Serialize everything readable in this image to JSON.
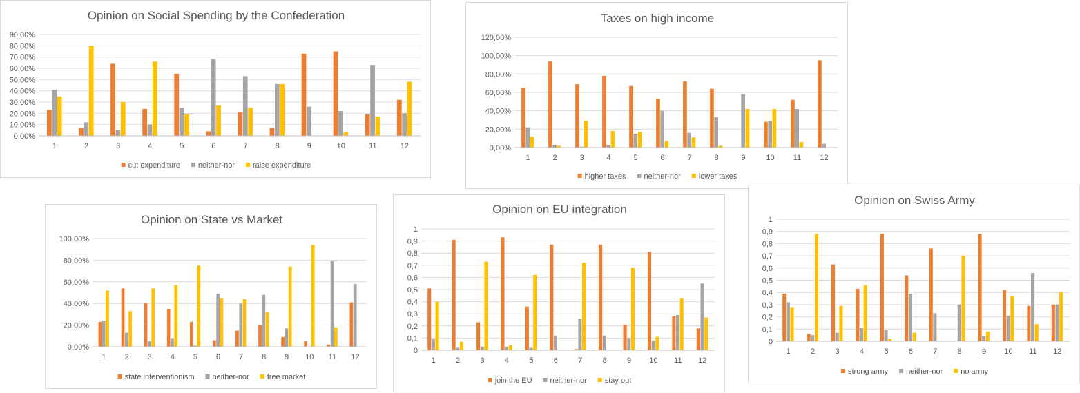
{
  "colors": {
    "series1": "#ED7D31",
    "series2": "#A5A5A5",
    "series3": "#FFC000",
    "grid": "#d9d9d9",
    "text": "#595959"
  },
  "chart_data": [
    {
      "type": "bar",
      "title": "Opinion on Social Spending by the Confederation",
      "categories": [
        "1",
        "2",
        "3",
        "4",
        "5",
        "6",
        "7",
        "8",
        "9",
        "10",
        "11",
        "12"
      ],
      "ylim": [
        0,
        0.9
      ],
      "yticks": [
        "0,00%",
        "10,00%",
        "20,00%",
        "30,00%",
        "40,00%",
        "50,00%",
        "60,00%",
        "70,00%",
        "80,00%",
        "90,00%"
      ],
      "grid": true,
      "legend_position": "bottom",
      "series": [
        {
          "name": "cut expenditure",
          "values": [
            0.23,
            0.07,
            0.64,
            0.24,
            0.55,
            0.04,
            0.21,
            0.07,
            0.73,
            0.75,
            0.19,
            0.32
          ]
        },
        {
          "name": "neither-nor",
          "values": [
            0.41,
            0.12,
            0.05,
            0.1,
            0.25,
            0.68,
            0.53,
            0.46,
            0.26,
            0.22,
            0.63,
            0.2
          ]
        },
        {
          "name": "raise expenditure",
          "values": [
            0.35,
            0.8,
            0.3,
            0.66,
            0.19,
            0.27,
            0.25,
            0.46,
            0.0,
            0.03,
            0.17,
            0.48
          ]
        }
      ]
    },
    {
      "type": "bar",
      "title": "Taxes on high income",
      "categories": [
        "1",
        "2",
        "3",
        "4",
        "5",
        "6",
        "7",
        "8",
        "9",
        "10",
        "11",
        "12"
      ],
      "ylim": [
        0,
        1.2
      ],
      "yticks": [
        "0,00%",
        "20,00%",
        "40,00%",
        "60,00%",
        "80,00%",
        "100,00%",
        "120,00%"
      ],
      "grid": true,
      "legend_position": "bottom",
      "series": [
        {
          "name": "higher taxes",
          "values": [
            0.65,
            0.94,
            0.69,
            0.78,
            0.67,
            0.53,
            0.72,
            0.64,
            0.0,
            0.28,
            0.52,
            0.95
          ]
        },
        {
          "name": "neither-nor",
          "values": [
            0.22,
            0.03,
            0.01,
            0.03,
            0.15,
            0.4,
            0.16,
            0.33,
            0.58,
            0.29,
            0.42,
            0.04
          ]
        },
        {
          "name": "lower taxes",
          "values": [
            0.12,
            0.02,
            0.29,
            0.18,
            0.17,
            0.07,
            0.11,
            0.02,
            0.42,
            0.42,
            0.06,
            0.0
          ]
        }
      ]
    },
    {
      "type": "bar",
      "title": "Opinion on State vs Market",
      "categories": [
        "1",
        "2",
        "3",
        "4",
        "5",
        "6",
        "7",
        "8",
        "9",
        "10",
        "11",
        "12"
      ],
      "ylim": [
        0,
        1.0
      ],
      "yticks": [
        "0,00%",
        "20,00%",
        "40,00%",
        "60,00%",
        "80,00%",
        "100,00%"
      ],
      "grid": true,
      "legend_position": "bottom",
      "series": [
        {
          "name": "state interventionism",
          "values": [
            0.23,
            0.54,
            0.4,
            0.35,
            0.23,
            0.06,
            0.15,
            0.2,
            0.09,
            0.05,
            0.02,
            0.41
          ]
        },
        {
          "name": "neither-nor",
          "values": [
            0.24,
            0.13,
            0.05,
            0.08,
            0.01,
            0.49,
            0.4,
            0.48,
            0.17,
            0.0,
            0.79,
            0.58
          ]
        },
        {
          "name": "free market",
          "values": [
            0.52,
            0.33,
            0.54,
            0.57,
            0.75,
            0.45,
            0.44,
            0.32,
            0.74,
            0.94,
            0.18,
            0.0
          ]
        }
      ]
    },
    {
      "type": "bar",
      "title": "Opinion on EU integration",
      "categories": [
        "1",
        "2",
        "3",
        "4",
        "5",
        "6",
        "7",
        "8",
        "9",
        "10",
        "11",
        "12"
      ],
      "ylim": [
        0,
        1
      ],
      "yticks": [
        "0",
        "0,1",
        "0,2",
        "0,3",
        "0,4",
        "0,5",
        "0,6",
        "0,7",
        "0,8",
        "0,9",
        "1"
      ],
      "grid": true,
      "legend_position": "bottom",
      "series": [
        {
          "name": "join the EU",
          "values": [
            0.51,
            0.91,
            0.23,
            0.93,
            0.36,
            0.87,
            0.01,
            0.87,
            0.21,
            0.81,
            0.28,
            0.18
          ]
        },
        {
          "name": "neither-nor",
          "values": [
            0.09,
            0.02,
            0.03,
            0.03,
            0.02,
            0.12,
            0.26,
            0.12,
            0.1,
            0.08,
            0.29,
            0.55
          ]
        },
        {
          "name": "stay out",
          "values": [
            0.4,
            0.07,
            0.73,
            0.04,
            0.62,
            0.0,
            0.72,
            0.0,
            0.68,
            0.11,
            0.43,
            0.27
          ]
        }
      ]
    },
    {
      "type": "bar",
      "title": "Opinion on Swiss Army",
      "categories": [
        "1",
        "2",
        "3",
        "4",
        "5",
        "6",
        "7",
        "8",
        "9",
        "10",
        "11",
        "12"
      ],
      "ylim": [
        0,
        1
      ],
      "yticks": [
        "0",
        "0,1",
        "0,2",
        "0,3",
        "0,4",
        "0,5",
        "0,6",
        "0,7",
        "0,8",
        "0,9",
        "1"
      ],
      "grid": true,
      "legend_position": "bottom",
      "series": [
        {
          "name": "strong army",
          "values": [
            0.39,
            0.06,
            0.63,
            0.43,
            0.88,
            0.54,
            0.76,
            0.0,
            0.88,
            0.42,
            0.29,
            0.3
          ]
        },
        {
          "name": "neither-nor",
          "values": [
            0.32,
            0.05,
            0.07,
            0.11,
            0.09,
            0.39,
            0.23,
            0.3,
            0.04,
            0.21,
            0.56,
            0.3
          ]
        },
        {
          "name": "no army",
          "values": [
            0.28,
            0.88,
            0.29,
            0.46,
            0.02,
            0.07,
            0.0,
            0.7,
            0.08,
            0.37,
            0.14,
            0.4
          ]
        }
      ]
    }
  ]
}
